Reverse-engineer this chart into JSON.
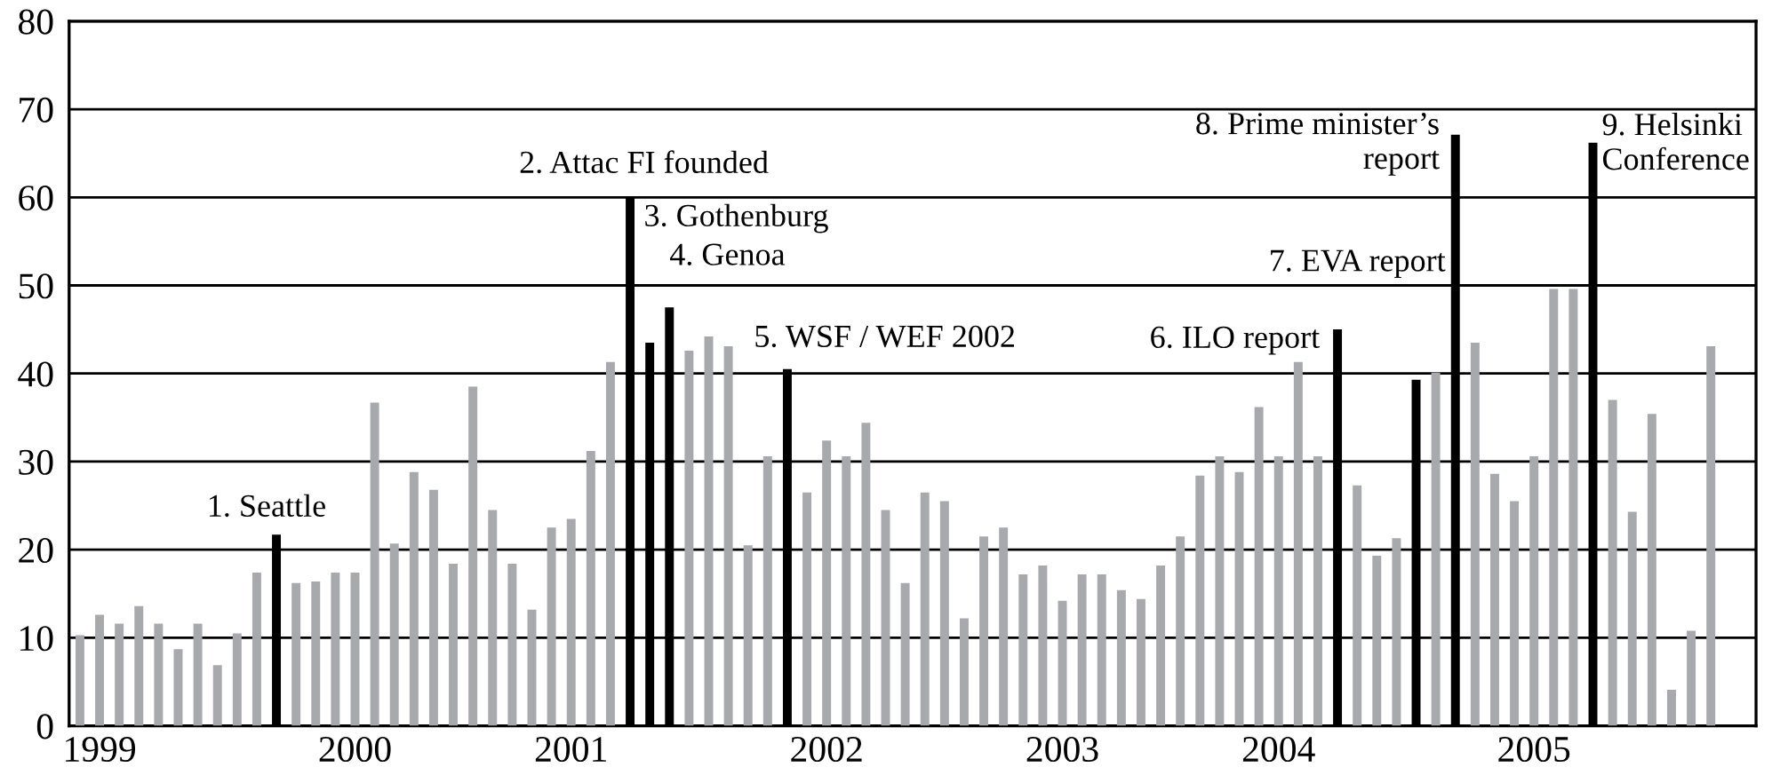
{
  "chart_data": {
    "type": "bar",
    "categories": [
      null,
      "1999",
      null,
      null,
      null,
      null,
      null,
      null,
      null,
      null,
      null,
      null,
      null,
      null,
      "2000",
      null,
      null,
      null,
      null,
      null,
      null,
      null,
      null,
      null,
      null,
      "2001",
      null,
      null,
      null,
      null,
      null,
      null,
      null,
      null,
      null,
      null,
      null,
      null,
      "2002",
      null,
      null,
      null,
      null,
      null,
      null,
      null,
      null,
      null,
      null,
      null,
      "2003",
      null,
      null,
      null,
      null,
      null,
      null,
      null,
      null,
      null,
      null,
      "2004",
      null,
      null,
      null,
      null,
      null,
      null,
      null,
      null,
      null,
      null,
      null,
      null,
      "2005",
      null,
      null,
      null,
      null,
      null,
      null,
      null,
      null,
      null
    ],
    "values": [
      10.3,
      12.6,
      11.6,
      13.6,
      11.6,
      8.7,
      11.6,
      6.9,
      10.5,
      17.4,
      21.7,
      16.2,
      16.4,
      17.4,
      17.4,
      36.7,
      20.7,
      28.8,
      26.8,
      18.4,
      38.5,
      24.5,
      18.4,
      13.2,
      22.5,
      23.5,
      31.2,
      41.3,
      60.0,
      43.5,
      47.5,
      42.6,
      44.2,
      43.1,
      20.5,
      30.6,
      40.5,
      26.5,
      32.4,
      30.6,
      34.4,
      24.5,
      16.2,
      26.5,
      25.5,
      12.2,
      21.5,
      22.5,
      17.2,
      18.2,
      14.2,
      17.2,
      17.2,
      15.4,
      14.4,
      18.2,
      21.5,
      28.4,
      30.6,
      28.8,
      36.2,
      30.6,
      41.3,
      30.6,
      45.0,
      27.3,
      19.3,
      21.3,
      39.3,
      40.1,
      67.1,
      43.5,
      28.6,
      25.5,
      30.6,
      49.6,
      49.6,
      66.2,
      37.0,
      24.3,
      35.4,
      4.1,
      10.8,
      43.1
    ],
    "colors": [
      "#a7a9ac",
      "#a7a9ac",
      "#a7a9ac",
      "#a7a9ac",
      "#a7a9ac",
      "#a7a9ac",
      "#a7a9ac",
      "#a7a9ac",
      "#a7a9ac",
      "#a7a9ac",
      "#000000",
      "#a7a9ac",
      "#a7a9ac",
      "#a7a9ac",
      "#a7a9ac",
      "#a7a9ac",
      "#a7a9ac",
      "#a7a9ac",
      "#a7a9ac",
      "#a7a9ac",
      "#a7a9ac",
      "#a7a9ac",
      "#a7a9ac",
      "#a7a9ac",
      "#a7a9ac",
      "#a7a9ac",
      "#a7a9ac",
      "#a7a9ac",
      "#000000",
      "#000000",
      "#000000",
      "#a7a9ac",
      "#a7a9ac",
      "#a7a9ac",
      "#a7a9ac",
      "#a7a9ac",
      "#000000",
      "#a7a9ac",
      "#a7a9ac",
      "#a7a9ac",
      "#a7a9ac",
      "#a7a9ac",
      "#a7a9ac",
      "#a7a9ac",
      "#a7a9ac",
      "#a7a9ac",
      "#a7a9ac",
      "#a7a9ac",
      "#a7a9ac",
      "#a7a9ac",
      "#a7a9ac",
      "#a7a9ac",
      "#a7a9ac",
      "#a7a9ac",
      "#a7a9ac",
      "#a7a9ac",
      "#a7a9ac",
      "#a7a9ac",
      "#a7a9ac",
      "#a7a9ac",
      "#a7a9ac",
      "#a7a9ac",
      "#a7a9ac",
      "#a7a9ac",
      "#000000",
      "#a7a9ac",
      "#a7a9ac",
      "#a7a9ac",
      "#000000",
      "#a7a9ac",
      "#000000",
      "#a7a9ac",
      "#a7a9ac",
      "#a7a9ac",
      "#a7a9ac",
      "#a7a9ac",
      "#a7a9ac",
      "#000000",
      "#a7a9ac",
      "#a7a9ac",
      "#a7a9ac",
      "#a7a9ac",
      "#a7a9ac",
      "#a7a9ac"
    ],
    "ylim": [
      0,
      80
    ],
    "yticks": [
      0,
      10,
      20,
      30,
      40,
      50,
      60,
      70,
      80
    ],
    "grid": "y",
    "annotations": [
      "1. Seattle",
      "2. Attac FI founded",
      "3. Gothenburg",
      "4. Genoa",
      "5. WSF / WEF 2002",
      "6. ILO report",
      "7. EVA report",
      "8. Prime minister’s\nreport",
      "9. Helsinki\nConference"
    ]
  }
}
